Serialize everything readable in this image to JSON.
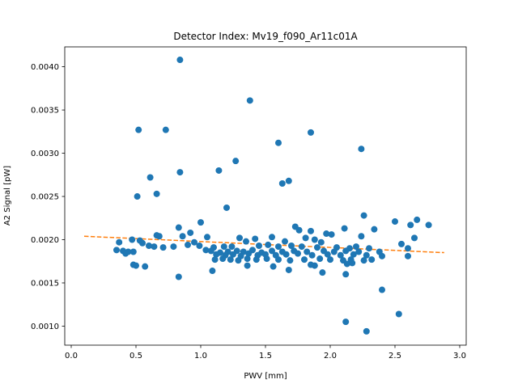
{
  "chart_data": {
    "type": "scatter",
    "title": "Detector Index: Mv19_f090_Ar11c01A",
    "xlabel": "PWV [mm]",
    "ylabel": "A2 Signal [pW]",
    "xlim": [
      -0.05,
      3.05
    ],
    "ylim": [
      0.00078,
      0.00423
    ],
    "x_ticks": [
      0.0,
      0.5,
      1.0,
      1.5,
      2.0,
      2.5,
      3.0
    ],
    "x_tick_labels": [
      "0.0",
      "0.5",
      "1.0",
      "1.5",
      "2.0",
      "2.5",
      "3.0"
    ],
    "y_ticks": [
      0.001,
      0.0015,
      0.002,
      0.0025,
      0.003,
      0.0035,
      0.004
    ],
    "y_tick_labels": [
      "0.0010",
      "0.0015",
      "0.0020",
      "0.0025",
      "0.0030",
      "0.0035",
      "0.0040"
    ],
    "series": [
      {
        "name": "data",
        "kind": "scatter",
        "color": "#1f77b4",
        "points": [
          [
            0.84,
            0.00408
          ],
          [
            1.38,
            0.00361
          ],
          [
            0.52,
            0.00327
          ],
          [
            0.73,
            0.00327
          ],
          [
            1.85,
            0.00324
          ],
          [
            1.6,
            0.00312
          ],
          [
            2.24,
            0.00305
          ],
          [
            1.27,
            0.00291
          ],
          [
            1.14,
            0.0028
          ],
          [
            0.84,
            0.00278
          ],
          [
            0.61,
            0.00272
          ],
          [
            1.68,
            0.00268
          ],
          [
            1.63,
            0.00265
          ],
          [
            0.66,
            0.00253
          ],
          [
            0.51,
            0.0025
          ],
          [
            1.2,
            0.00237
          ],
          [
            2.26,
            0.00228
          ],
          [
            2.5,
            0.00221
          ],
          [
            2.67,
            0.00223
          ],
          [
            1.0,
            0.0022
          ],
          [
            2.76,
            0.00217
          ],
          [
            1.73,
            0.00215
          ],
          [
            2.62,
            0.00217
          ],
          [
            2.11,
            0.00213
          ],
          [
            2.34,
            0.00212
          ],
          [
            0.83,
            0.00214
          ],
          [
            0.92,
            0.00208
          ],
          [
            1.76,
            0.00211
          ],
          [
            1.85,
            0.0021
          ],
          [
            1.97,
            0.00207
          ],
          [
            2.01,
            0.00206
          ],
          [
            2.24,
            0.00204
          ],
          [
            2.65,
            0.00202
          ],
          [
            0.66,
            0.00205
          ],
          [
            0.68,
            0.00204
          ],
          [
            0.86,
            0.00204
          ],
          [
            1.05,
            0.00203
          ],
          [
            1.3,
            0.00202
          ],
          [
            1.42,
            0.00201
          ],
          [
            1.55,
            0.00203
          ],
          [
            1.81,
            0.00202
          ],
          [
            1.88,
            0.002
          ],
          [
            0.47,
            0.002
          ],
          [
            0.53,
            0.00199
          ],
          [
            0.37,
            0.00197
          ],
          [
            0.55,
            0.00196
          ],
          [
            0.95,
            0.00197
          ],
          [
            1.35,
            0.00198
          ],
          [
            1.65,
            0.00198
          ],
          [
            1.93,
            0.00197
          ],
          [
            2.55,
            0.00195
          ],
          [
            2.6,
            0.0019
          ],
          [
            0.6,
            0.00193
          ],
          [
            0.64,
            0.00192
          ],
          [
            0.71,
            0.00191
          ],
          [
            0.79,
            0.00192
          ],
          [
            0.9,
            0.00194
          ],
          [
            0.99,
            0.00193
          ],
          [
            1.1,
            0.00191
          ],
          [
            1.18,
            0.00192
          ],
          [
            1.24,
            0.00192
          ],
          [
            1.45,
            0.00193
          ],
          [
            1.52,
            0.00194
          ],
          [
            1.6,
            0.00192
          ],
          [
            1.7,
            0.00193
          ],
          [
            1.78,
            0.00192
          ],
          [
            1.9,
            0.00191
          ],
          [
            2.05,
            0.00191
          ],
          [
            2.15,
            0.0019
          ],
          [
            2.2,
            0.00192
          ],
          [
            2.3,
            0.0019
          ],
          [
            0.35,
            0.00188
          ],
          [
            0.4,
            0.00187
          ],
          [
            0.44,
            0.00186
          ],
          [
            0.48,
            0.00186
          ],
          [
            1.04,
            0.00188
          ],
          [
            1.08,
            0.00187
          ],
          [
            1.15,
            0.00185
          ],
          [
            1.21,
            0.00186
          ],
          [
            1.28,
            0.00187
          ],
          [
            1.33,
            0.00186
          ],
          [
            1.4,
            0.00188
          ],
          [
            1.47,
            0.00185
          ],
          [
            1.55,
            0.00187
          ],
          [
            1.63,
            0.00186
          ],
          [
            1.72,
            0.00187
          ],
          [
            1.82,
            0.00186
          ],
          [
            1.95,
            0.00187
          ],
          [
            2.03,
            0.00186
          ],
          [
            2.12,
            0.00187
          ],
          [
            2.22,
            0.00186
          ],
          [
            2.38,
            0.00186
          ],
          [
            0.42,
            0.00184
          ],
          [
            1.12,
            0.00183
          ],
          [
            1.19,
            0.00182
          ],
          [
            1.25,
            0.00183
          ],
          [
            1.31,
            0.00181
          ],
          [
            1.37,
            0.00184
          ],
          [
            1.44,
            0.00182
          ],
          [
            1.5,
            0.00183
          ],
          [
            1.58,
            0.00182
          ],
          [
            1.66,
            0.00183
          ],
          [
            1.75,
            0.00184
          ],
          [
            1.86,
            0.00182
          ],
          [
            1.98,
            0.00183
          ],
          [
            2.08,
            0.00182
          ],
          [
            2.18,
            0.00183
          ],
          [
            2.28,
            0.00182
          ],
          [
            2.4,
            0.00181
          ],
          [
            2.6,
            0.00181
          ],
          [
            1.11,
            0.00177
          ],
          [
            1.17,
            0.00178
          ],
          [
            1.23,
            0.00177
          ],
          [
            1.29,
            0.00176
          ],
          [
            1.36,
            0.00178
          ],
          [
            1.43,
            0.00177
          ],
          [
            1.51,
            0.00178
          ],
          [
            1.6,
            0.00177
          ],
          [
            1.69,
            0.00176
          ],
          [
            1.8,
            0.00177
          ],
          [
            1.92,
            0.00178
          ],
          [
            2.0,
            0.00177
          ],
          [
            2.1,
            0.00176
          ],
          [
            2.16,
            0.00177
          ],
          [
            2.26,
            0.00176
          ],
          [
            2.32,
            0.00177
          ],
          [
            0.48,
            0.00171
          ],
          [
            0.5,
            0.0017
          ],
          [
            0.57,
            0.00169
          ],
          [
            1.36,
            0.0017
          ],
          [
            1.56,
            0.00169
          ],
          [
            1.85,
            0.00171
          ],
          [
            1.88,
            0.0017
          ],
          [
            2.13,
            0.00172
          ],
          [
            2.17,
            0.00173
          ],
          [
            1.09,
            0.00164
          ],
          [
            1.68,
            0.00165
          ],
          [
            1.94,
            0.00162
          ],
          [
            2.12,
            0.0016
          ],
          [
            0.83,
            0.00157
          ],
          [
            2.4,
            0.00142
          ],
          [
            2.53,
            0.00114
          ],
          [
            2.12,
            0.00105
          ],
          [
            2.28,
            0.00094
          ]
        ]
      }
    ],
    "fit_line": {
      "name": "linear fit",
      "kind": "line",
      "style": "dashed",
      "color": "#ff7f0e",
      "x": [
        0.1,
        2.88
      ],
      "y": [
        0.00204,
        0.00185
      ]
    }
  }
}
